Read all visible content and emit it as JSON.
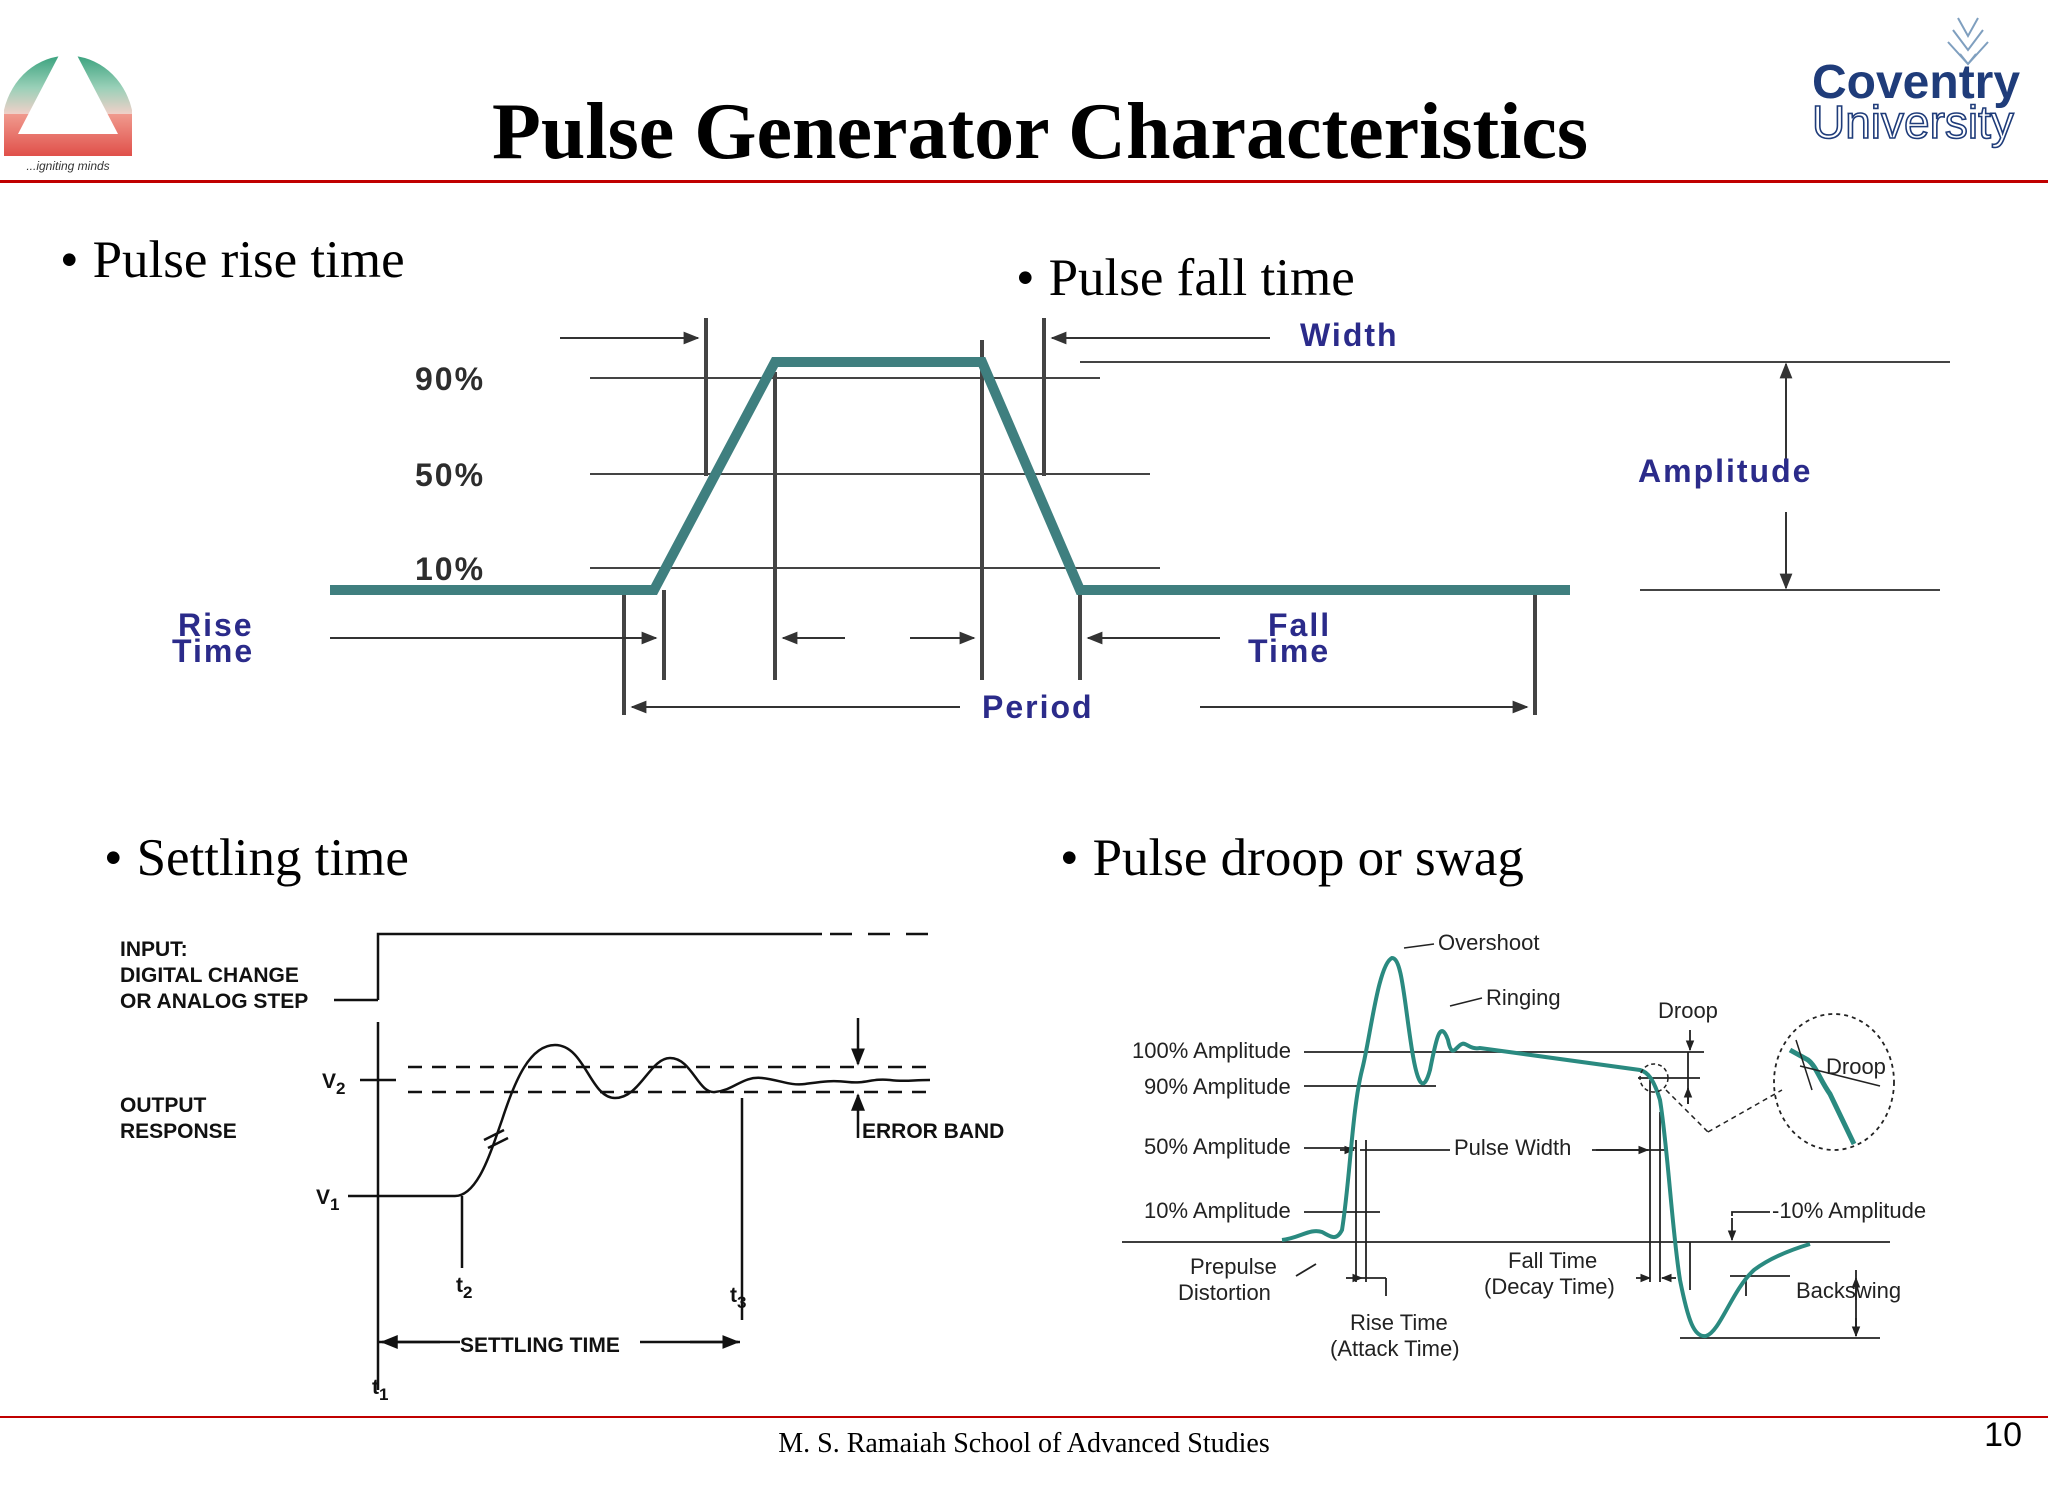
{
  "slide": {
    "title": "Pulse Generator Characteristics",
    "left_logo": {
      "tagline": "...igniting minds",
      "colors": [
        "#3aa27e",
        "#e0504a"
      ]
    },
    "right_logo": {
      "line1": "Coventry",
      "line2": "University",
      "color": "#1f3c7a"
    },
    "accent_color": "#c00000",
    "footer": "M. S. Ramaiah School of Advanced Studies",
    "page_number": "10"
  },
  "bullets": {
    "rise": "Pulse rise time",
    "fall": "Pulse fall time",
    "settling": "Settling time",
    "droop": "Pulse droop or swag",
    "marker": "•"
  },
  "pulse_diagram": {
    "wave_color": "#3f7f7f",
    "labels": {
      "p90": "90%",
      "p50": "50%",
      "p10": "10%",
      "width": "Width",
      "amplitude": "Amplitude",
      "rise_1": "Rise",
      "rise_2": "Time",
      "fall_1": "Fall",
      "fall_2": "Time",
      "period": "Period"
    }
  },
  "settling_diagram": {
    "labels": {
      "input_1": "INPUT:",
      "input_2": "DIGITAL CHANGE",
      "input_3": "OR ANALOG STEP",
      "output_1": "OUTPUT",
      "output_2": "RESPONSE",
      "v2": "V",
      "v2_sub": "2",
      "v1": "V",
      "v1_sub": "1",
      "error_band": "ERROR BAND",
      "t1": "t",
      "t1_sub": "1",
      "t2": "t",
      "t2_sub": "2",
      "t3": "t",
      "t3_sub": "3",
      "settling_time": "SETTLING TIME"
    }
  },
  "droop_diagram": {
    "wave_color": "#2a8a80",
    "labels": {
      "overshoot": "Overshoot",
      "ringing": "Ringing",
      "droop_top": "Droop",
      "amp100": "100% Amplitude",
      "amp90": "90% Amplitude",
      "amp50": "50% Amplitude",
      "amp10": "10% Amplitude",
      "pulse_width": "Pulse Width",
      "droop_zoom": "Droop",
      "neg10": "-10% Amplitude",
      "prepulse_1": "Prepulse",
      "prepulse_2": "Distortion",
      "fall_1": "Fall Time",
      "fall_2": "(Decay Time)",
      "rise_1": "Rise Time",
      "rise_2": "(Attack Time)",
      "backswing": "Backswing"
    }
  }
}
